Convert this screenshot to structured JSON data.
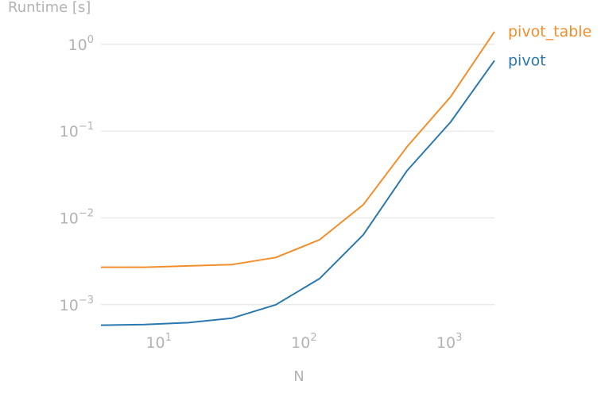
{
  "chart_data": {
    "type": "line",
    "title": "",
    "xlabel": "N",
    "ylabel": "Runtime [s]",
    "xscale": "log",
    "yscale": "log",
    "xlim": [
      4,
      2048
    ],
    "ylim": [
      0.0006,
      1.8
    ],
    "grid": "horizontal",
    "legend": "inline labels at right end of lines",
    "x": [
      4,
      8,
      16,
      32,
      64,
      128,
      256,
      512,
      1024,
      2048
    ],
    "x_ticks": [
      {
        "value": 10,
        "base": "10",
        "exp": "1"
      },
      {
        "value": 100,
        "base": "10",
        "exp": "2"
      },
      {
        "value": 1000,
        "base": "10",
        "exp": "3"
      }
    ],
    "y_ticks": [
      {
        "value": 1,
        "base": "10",
        "exp": "0"
      },
      {
        "value": 0.1,
        "base": "10",
        "exp": "−1"
      },
      {
        "value": 0.01,
        "base": "10",
        "exp": "−2"
      },
      {
        "value": 0.001,
        "base": "10",
        "exp": "−3"
      }
    ],
    "series": [
      {
        "name": "pivot_table",
        "color": "#f28e2b",
        "values": [
          0.0027,
          0.0027,
          0.0028,
          0.0029,
          0.0035,
          0.0056,
          0.0142,
          0.066,
          0.25,
          1.4
        ]
      },
      {
        "name": "pivot",
        "color": "#2a78b0",
        "values": [
          0.00058,
          0.00059,
          0.00062,
          0.0007,
          0.001,
          0.002,
          0.0064,
          0.035,
          0.128,
          0.65
        ]
      }
    ]
  },
  "colors": {
    "axis_text": "#b3b3b3",
    "grid": "#e6e6e6"
  }
}
